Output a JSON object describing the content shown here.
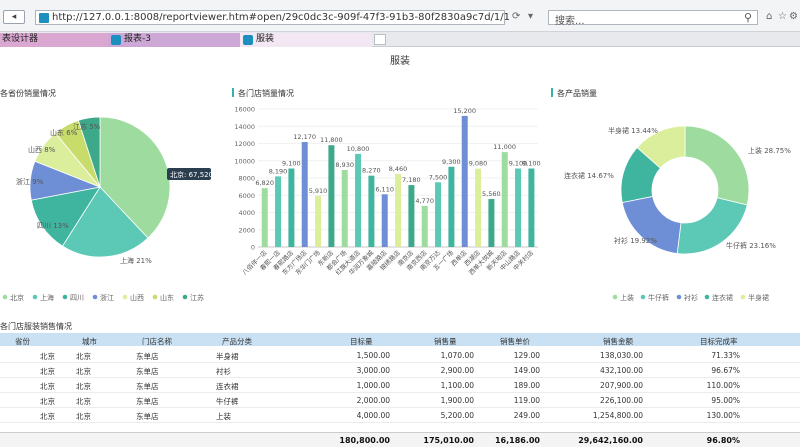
{
  "browser": {
    "url": "http://127.0.0.1:8008/reportviewer.htm#open/29c0dc3c-909f-47f3-91b3-80f2830a9c7d/1/1",
    "search_placeholder": "搜索...",
    "tabs": [
      {
        "label": "表设计器"
      },
      {
        "label": "报表-3"
      },
      {
        "label": "服装"
      }
    ]
  },
  "report": {
    "title": "服装"
  },
  "pie1": {
    "title": "各省份销量情况",
    "tooltip": "北京: 67,520",
    "labels": [
      "北京",
      "上海 21%",
      "四川 13%",
      "浙江 9%",
      "山西 8%",
      "山东 6%",
      "江苏 5%"
    ],
    "legend": [
      "北京",
      "上海",
      "四川",
      "浙江",
      "山西",
      "山东",
      "江苏"
    ]
  },
  "bar": {
    "title": "各门店销量情况",
    "y_ticks": [
      "0",
      "2000",
      "4000",
      "6000",
      "8000",
      "10000",
      "12000",
      "14000",
      "16000"
    ]
  },
  "donut": {
    "title": "各产品销量",
    "labels": [
      "半身裙 13.44%",
      "上装 28.75%",
      "连衣裙 14.67%",
      "衬衫 19.92%",
      "牛仔裤 23.16%"
    ],
    "legend": [
      "上装",
      "牛仔裤",
      "衬衫",
      "连衣裙",
      "半身裙"
    ]
  },
  "colors": {
    "green": "#9ddc9e",
    "teal": "#5cc8b6",
    "tealdark": "#3fb5a0",
    "blue": "#6e8fd6",
    "lime": "#dbee9c",
    "yellow": "#c7dc6a",
    "seagreen": "#3ea88a",
    "accent": "#37b0ae"
  },
  "chart_data": [
    {
      "type": "pie",
      "title": "各省份销量情况",
      "categories": [
        "北京",
        "上海",
        "四川",
        "浙江",
        "山西",
        "山东",
        "江苏"
      ],
      "values": [
        38,
        21,
        13,
        9,
        8,
        6,
        5
      ],
      "tooltip": {
        "label": "北京",
        "value": 67520
      },
      "legend": "bottom"
    },
    {
      "type": "bar",
      "title": "各门店销量情况",
      "categories": [
        "八佰伴一店",
        "春熙一店",
        "春熙路店",
        "东方广场店",
        "东华门广场",
        "东新店",
        "都会广场",
        "红旗大道店",
        "华润万象城",
        "嘉陵路店",
        "锦绣路店",
        "南京店",
        "南京西店",
        "南京万达",
        "五一广场",
        "西单店",
        "西湖店",
        "西单大悦城",
        "新天地店",
        "中山路店",
        "中关村店"
      ],
      "values": [
        6820,
        8190,
        9100,
        12170,
        5910,
        11800,
        8930,
        10800,
        8270,
        6110,
        8460,
        7180,
        4770,
        7500,
        9300,
        15200,
        9080,
        5560,
        11000,
        9100,
        9100
      ],
      "ylim": [
        0,
        16000
      ],
      "grid": true
    },
    {
      "type": "pie",
      "title": "各产品销量",
      "categories": [
        "上装",
        "牛仔裤",
        "衬衫",
        "连衣裙",
        "半身裙"
      ],
      "values": [
        28.75,
        23.16,
        19.92,
        14.67,
        13.44
      ],
      "legend": "bottom"
    },
    {
      "type": "table",
      "title": "各门店服装销售情况",
      "columns": [
        "省份",
        "城市",
        "门店名称",
        "产品分类",
        "目标量",
        "销售量",
        "销售单价",
        "销售金额",
        "目标完成率"
      ],
      "rows": [
        [
          "北京",
          "北京",
          "东单店",
          "半身裙",
          "1,500.00",
          "1,070.00",
          "129.00",
          "138,030.00",
          "71.33%"
        ],
        [
          "北京",
          "北京",
          "东单店",
          "衬衫",
          "3,000.00",
          "2,900.00",
          "149.00",
          "432,100.00",
          "96.67%"
        ],
        [
          "北京",
          "北京",
          "东单店",
          "连衣裙",
          "1,000.00",
          "1,100.00",
          "189.00",
          "207,900.00",
          "110.00%"
        ],
        [
          "北京",
          "北京",
          "东单店",
          "牛仔裤",
          "2,000.00",
          "1,900.00",
          "119.00",
          "226,100.00",
          "95.00%"
        ],
        [
          "北京",
          "北京",
          "东单店",
          "上装",
          "4,000.00",
          "5,200.00",
          "249.00",
          "1,254,800.00",
          "130.00%"
        ]
      ],
      "totals": [
        "180,800.00",
        "175,010.00",
        "16,186.00",
        "29,642,160.00",
        "96.80%"
      ]
    }
  ]
}
